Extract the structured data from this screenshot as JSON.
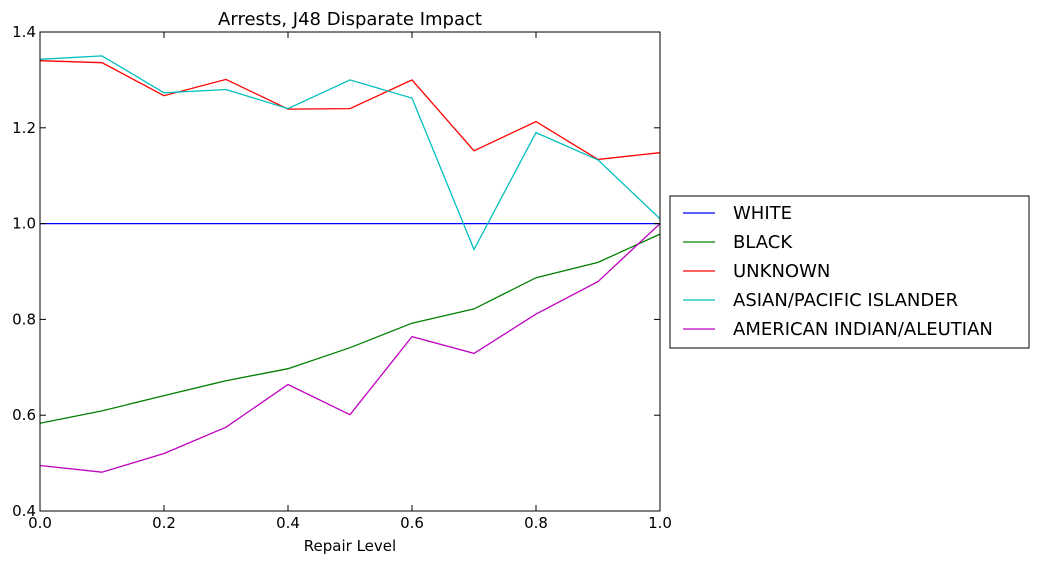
{
  "chart_data": {
    "type": "line",
    "title": "Arrests, J48 Disparate Impact",
    "xlabel": "Repair Level",
    "ylabel": "",
    "xlim": [
      0.0,
      1.0
    ],
    "ylim": [
      0.4,
      1.4
    ],
    "x_ticks": [
      "0.0",
      "0.2",
      "0.4",
      "0.6",
      "0.8",
      "1.0"
    ],
    "y_ticks": [
      "0.4",
      "0.6",
      "0.8",
      "1.0",
      "1.2",
      "1.4"
    ],
    "grid": false,
    "legend_position": "right, outside plot",
    "x": [
      0.0,
      0.1,
      0.2,
      0.3,
      0.4,
      0.5,
      0.6,
      0.7,
      0.8,
      0.9,
      1.0
    ],
    "series": [
      {
        "name": "WHITE",
        "color": "#0000ff",
        "values": [
          1.0,
          1.0,
          1.0,
          1.0,
          1.0,
          1.0,
          1.0,
          1.0,
          1.0,
          1.0,
          1.0
        ]
      },
      {
        "name": "BLACK",
        "color": "#008000",
        "values": [
          0.583,
          0.609,
          0.641,
          0.672,
          0.697,
          0.741,
          0.792,
          0.822,
          0.887,
          0.919,
          0.978
        ]
      },
      {
        "name": "UNKNOWN",
        "color": "#ff0000",
        "values": [
          1.34,
          1.336,
          1.267,
          1.301,
          1.239,
          1.24,
          1.3,
          1.152,
          1.213,
          1.134,
          1.148
        ]
      },
      {
        "name": "ASIAN/PACIFIC ISLANDER",
        "color": "#00bfbf",
        "values": [
          1.343,
          1.35,
          1.273,
          1.28,
          1.24,
          1.3,
          1.262,
          0.946,
          1.19,
          1.133,
          1.01
        ]
      },
      {
        "name": "AMERICAN INDIAN/ALEUTIAN",
        "color": "#bf00bf",
        "values": [
          0.495,
          0.481,
          0.52,
          0.575,
          0.664,
          0.601,
          0.764,
          0.729,
          0.811,
          0.879,
          1.0
        ]
      }
    ]
  }
}
